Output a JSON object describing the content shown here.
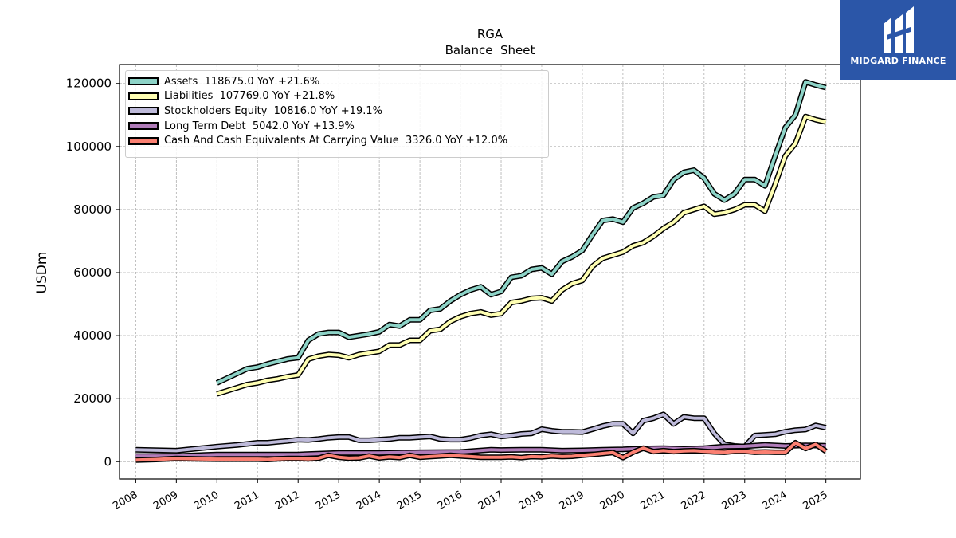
{
  "logo": {
    "text": "MIDGARD FINANCE",
    "color": "#2b56a8"
  },
  "chart_data": {
    "type": "line",
    "title": "RGA",
    "subtitle": "Balance  Sheet",
    "ylabel": "USDm",
    "xlabel": "",
    "xlim": [
      2007.6,
      2025.85
    ],
    "ylim": [
      -5500,
      126000
    ],
    "x_ticks": [
      "2008",
      "2009",
      "2010",
      "2011",
      "2012",
      "2013",
      "2014",
      "2015",
      "2016",
      "2017",
      "2018",
      "2019",
      "2020",
      "2021",
      "2022",
      "2023",
      "2024",
      "2025"
    ],
    "y_ticks": [
      "0",
      "20000",
      "40000",
      "60000",
      "80000",
      "100000",
      "120000"
    ],
    "grid": true,
    "legend_position": "upper-left",
    "series": [
      {
        "name": "Assets  118675.0 YoY +21.6%",
        "color": "#8dd3c7",
        "x": [
          2010.0,
          2010.25,
          2010.5,
          2010.75,
          2011.0,
          2011.25,
          2011.5,
          2011.75,
          2012.0,
          2012.25,
          2012.5,
          2012.75,
          2013.0,
          2013.25,
          2013.5,
          2013.75,
          2014.0,
          2014.25,
          2014.5,
          2014.75,
          2015.0,
          2015.25,
          2015.5,
          2015.75,
          2016.0,
          2016.25,
          2016.5,
          2016.75,
          2017.0,
          2017.25,
          2017.5,
          2017.75,
          2018.0,
          2018.25,
          2018.5,
          2018.75,
          2019.0,
          2019.25,
          2019.5,
          2019.75,
          2020.0,
          2020.25,
          2020.5,
          2020.75,
          2021.0,
          2021.25,
          2021.5,
          2021.75,
          2022.0,
          2022.25,
          2022.5,
          2022.75,
          2023.0,
          2023.25,
          2023.5,
          2023.75,
          2024.0,
          2024.25,
          2024.5,
          2024.75,
          2025.0
        ],
        "values": [
          25000,
          26500,
          28000,
          29500,
          30000,
          31000,
          31800,
          32600,
          33000,
          38500,
          40500,
          41000,
          41000,
          39500,
          40000,
          40500,
          41200,
          43500,
          43000,
          45000,
          45000,
          48000,
          48500,
          51000,
          53000,
          54500,
          55500,
          53000,
          54000,
          58500,
          59000,
          61000,
          61500,
          59500,
          63500,
          65000,
          67000,
          72000,
          76500,
          77000,
          76000,
          80500,
          82000,
          84000,
          84500,
          89500,
          91800,
          92500,
          90000,
          85000,
          83000,
          85000,
          89500,
          89500,
          87500,
          97000,
          106000,
          110000,
          120500,
          119500,
          118675
        ]
      },
      {
        "name": "Liabilities  107769.0 YoY +21.8%",
        "color": "#ffffb3",
        "x": [
          2010.0,
          2010.25,
          2010.5,
          2010.75,
          2011.0,
          2011.25,
          2011.5,
          2011.75,
          2012.0,
          2012.25,
          2012.5,
          2012.75,
          2013.0,
          2013.25,
          2013.5,
          2013.75,
          2014.0,
          2014.25,
          2014.5,
          2014.75,
          2015.0,
          2015.25,
          2015.5,
          2015.75,
          2016.0,
          2016.25,
          2016.5,
          2016.75,
          2017.0,
          2017.25,
          2017.5,
          2017.75,
          2018.0,
          2018.25,
          2018.5,
          2018.75,
          2019.0,
          2019.25,
          2019.5,
          2019.75,
          2020.0,
          2020.25,
          2020.5,
          2020.75,
          2021.0,
          2021.25,
          2021.5,
          2021.75,
          2022.0,
          2022.25,
          2022.5,
          2022.75,
          2023.0,
          2023.25,
          2023.5,
          2023.75,
          2024.0,
          2024.25,
          2024.5,
          2024.75,
          2025.0
        ],
        "values": [
          21500,
          22500,
          23500,
          24500,
          25000,
          25800,
          26300,
          27000,
          27500,
          32500,
          33500,
          34000,
          33800,
          33000,
          34000,
          34500,
          35000,
          37000,
          37000,
          38500,
          38500,
          41500,
          42000,
          44500,
          46000,
          47000,
          47500,
          46500,
          47000,
          50500,
          51000,
          51800,
          52000,
          51000,
          54500,
          56500,
          57500,
          62000,
          64500,
          65500,
          66500,
          68500,
          69500,
          71500,
          74000,
          76000,
          79000,
          80000,
          81000,
          78500,
          79000,
          80000,
          81500,
          81500,
          79500,
          88000,
          97000,
          101000,
          109500,
          108500,
          107769
        ]
      },
      {
        "name": "Stockholders Equity  10816.0 YoY +19.1%",
        "color": "#bebada",
        "x": [
          2008.0,
          2009.0,
          2010.0,
          2010.5,
          2011.0,
          2011.25,
          2011.5,
          2011.75,
          2012.0,
          2012.25,
          2012.5,
          2012.75,
          2013.0,
          2013.25,
          2013.5,
          2013.75,
          2014.0,
          2014.25,
          2014.5,
          2014.75,
          2015.0,
          2015.25,
          2015.5,
          2015.75,
          2016.0,
          2016.25,
          2016.5,
          2016.75,
          2017.0,
          2017.25,
          2017.5,
          2017.75,
          2018.0,
          2018.25,
          2018.5,
          2018.75,
          2019.0,
          2019.25,
          2019.5,
          2019.75,
          2020.0,
          2020.25,
          2020.5,
          2020.75,
          2021.0,
          2021.25,
          2021.5,
          2021.75,
          2022.0,
          2022.25,
          2022.5,
          2022.75,
          2023.0,
          2023.25,
          2023.5,
          2023.75,
          2024.0,
          2024.25,
          2024.5,
          2024.75,
          2025.0
        ],
        "values": [
          3800,
          3500,
          4800,
          5300,
          6000,
          6000,
          6300,
          6600,
          7000,
          6900,
          7200,
          7600,
          7800,
          7800,
          6800,
          6800,
          7000,
          7200,
          7600,
          7600,
          7800,
          8000,
          7200,
          7000,
          7000,
          7500,
          8300,
          8700,
          8000,
          8300,
          8800,
          9000,
          10300,
          9800,
          9500,
          9500,
          9400,
          10300,
          11300,
          12000,
          12000,
          9000,
          13000,
          13800,
          15000,
          12000,
          14200,
          13800,
          13800,
          9000,
          5500,
          5000,
          4800,
          8300,
          8500,
          8700,
          9500,
          10000,
          10200,
          11500,
          10816
        ]
      },
      {
        "name": "Long Term Debt  5042.0 YoY +13.9%",
        "color": "#b07cb9",
        "x": [
          2008.0,
          2009.0,
          2010.0,
          2011.0,
          2012.0,
          2013.0,
          2014.0,
          2015.0,
          2016.0,
          2016.75,
          2017.0,
          2017.5,
          2018.0,
          2018.5,
          2019.0,
          2019.5,
          2020.0,
          2020.5,
          2021.0,
          2021.5,
          2022.0,
          2022.5,
          2023.0,
          2023.5,
          2024.0,
          2024.5,
          2025.0
        ],
        "values": [
          1800,
          1800,
          2300,
          2300,
          2300,
          2800,
          2800,
          3000,
          3100,
          3800,
          3700,
          3800,
          3800,
          3500,
          3600,
          3800,
          3900,
          4200,
          4300,
          4100,
          4300,
          4800,
          4900,
          5300,
          5000,
          5200,
          5042
        ]
      },
      {
        "name": "Cash And Cash Equivalents At Carrying Value  3326.0 YoY +12.0%",
        "color": "#fb8072",
        "x": [
          2008.0,
          2008.5,
          2009.0,
          2009.5,
          2010.0,
          2010.5,
          2011.0,
          2011.25,
          2011.5,
          2011.75,
          2012.0,
          2012.25,
          2012.5,
          2012.75,
          2013.0,
          2013.25,
          2013.5,
          2013.75,
          2014.0,
          2014.25,
          2014.5,
          2014.75,
          2015.0,
          2015.25,
          2015.5,
          2015.75,
          2016.0,
          2016.25,
          2016.5,
          2016.75,
          2017.0,
          2017.25,
          2017.5,
          2017.75,
          2018.0,
          2018.25,
          2018.5,
          2018.75,
          2019.0,
          2019.25,
          2019.5,
          2019.75,
          2020.0,
          2020.25,
          2020.5,
          2020.75,
          2021.0,
          2021.25,
          2021.5,
          2021.75,
          2022.0,
          2022.25,
          2022.5,
          2022.75,
          2023.0,
          2023.25,
          2023.5,
          2023.75,
          2024.0,
          2024.25,
          2024.5,
          2024.75,
          2025.0
        ],
        "values": [
          500,
          700,
          1000,
          900,
          800,
          800,
          800,
          700,
          900,
          1000,
          1000,
          900,
          1100,
          2000,
          1400,
          1100,
          1200,
          1800,
          1200,
          1500,
          1300,
          2000,
          1400,
          1600,
          1800,
          2000,
          1800,
          1600,
          1400,
          1400,
          1400,
          1500,
          1300,
          1600,
          1500,
          1800,
          1600,
          1700,
          2000,
          2300,
          2600,
          2900,
          1300,
          3000,
          4300,
          3200,
          3500,
          3200,
          3400,
          3500,
          3300,
          3100,
          3000,
          3300,
          3300,
          3000,
          3100,
          3000,
          3000,
          6000,
          4200,
          5500,
          3326
        ]
      }
    ]
  }
}
